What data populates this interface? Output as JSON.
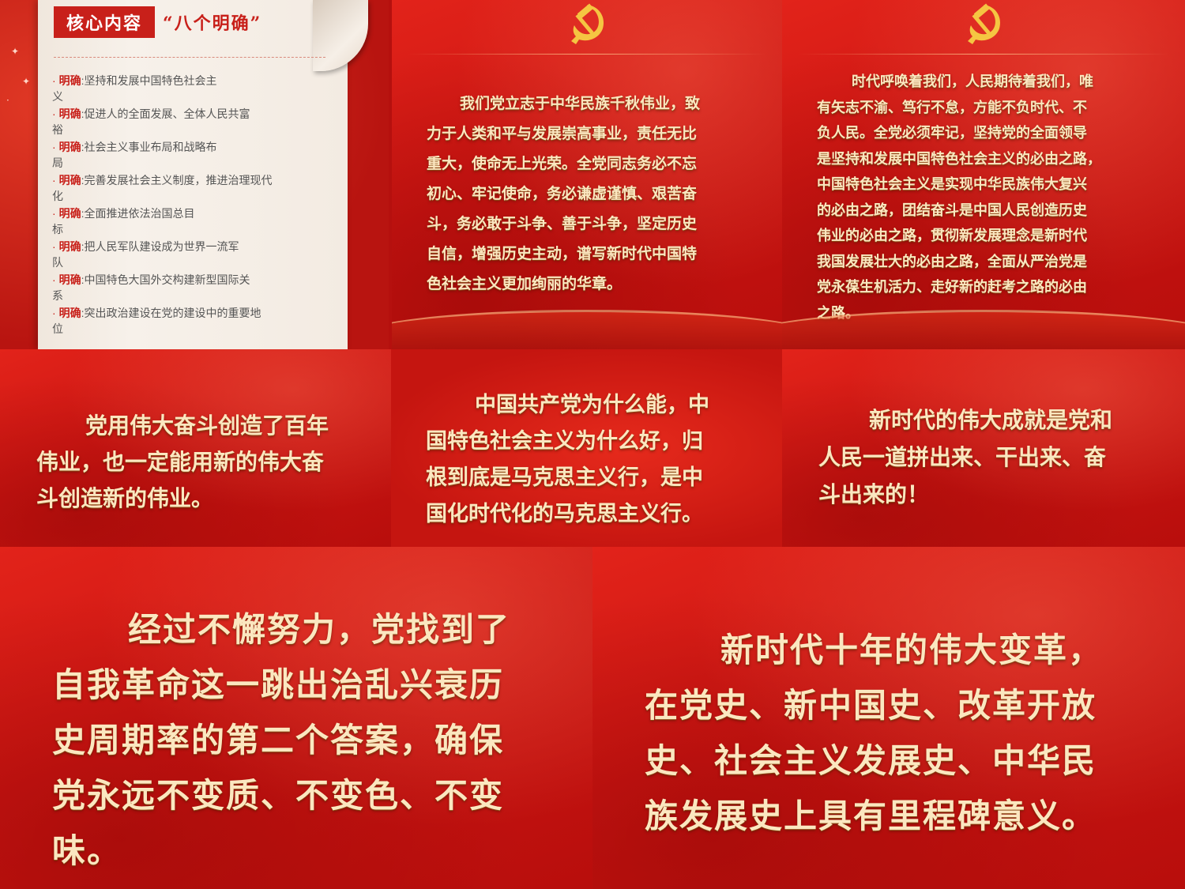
{
  "scroll_panel": {
    "title": "核心内容",
    "subtitle": "“八个明确”",
    "items": [
      {
        "key": "明确",
        "text": ":坚持和发展中国特色社会主",
        "tail": "义"
      },
      {
        "key": "明确",
        "text": ":促进人的全面发展、全体人民共富",
        "tail": "裕"
      },
      {
        "key": "明确",
        "text": ":社会主义事业布局和战略布",
        "tail": "局"
      },
      {
        "key": "明确",
        "text": ":完善发展社会主义制度，推进治理现代",
        "tail": "化"
      },
      {
        "key": "明确",
        "text": ":全面推进依法治国总目",
        "tail": "标"
      },
      {
        "key": "明确",
        "text": ":把人民军队建设成为世界一流军",
        "tail": "队"
      },
      {
        "key": "明确",
        "text": ":中国特色大国外交构建新型国际关",
        "tail": "系"
      },
      {
        "key": "明确",
        "text": ":突出政治建设在党的建设中的重要地",
        "tail": "位"
      }
    ]
  },
  "panel_2": {
    "lines": [
      "我们党立志于中华民族千秋伟业，致",
      "力于人类和平与发展崇高事业，责任无比",
      "重大，使命无上光荣。全党同志务必不忘",
      "初心、牢记使命，务必谦虚谨慎、艰苦奋",
      "斗，务必敢于斗争、善于斗争，坚定历史",
      "自信，增强历史主动，谱写新时代中国特",
      "色社会主义更加绚丽的华章。"
    ]
  },
  "panel_3": {
    "lines": [
      "时代呼唤着我们，人民期待着我们，唯",
      "有矢志不渝、笃行不怠，方能不负时代、不",
      "负人民。全党必须牢记，坚持党的全面领导",
      "是坚持和发展中国特色社会主义的必由之路，",
      "中国特色社会主义是实现中华民族伟大复兴",
      "的必由之路，团结奋斗是中国人民创造历史",
      "伟业的必由之路，贯彻新发展理念是新时代",
      "我国发展壮大的必由之路，全面从严治党是",
      "党永葆生机活力、走好新的赶考之路的必由",
      "之路。"
    ]
  },
  "panel_4": {
    "lines": [
      "党用伟大奋斗创造了百年",
      "伟业，也一定能用新的伟大奋",
      "斗创造新的伟业。"
    ]
  },
  "panel_5": {
    "lines": [
      "中国共产党为什么能，中",
      "国特色社会主义为什么好，归",
      "根到底是马克思主义行，是中",
      "国化时代化的马克思主义行。"
    ]
  },
  "panel_6": {
    "lines": [
      "新时代的伟大成就是党和",
      "人民一道拼出来、干出来、奋",
      "斗出来的！"
    ]
  },
  "panel_7": {
    "lines": [
      "经过不懈努力，党找到了",
      "自我革命这一跳出治乱兴衰历",
      "史周期率的第二个答案，确保",
      "党永远不变质、不变色、不变",
      "味。"
    ]
  },
  "panel_8": {
    "lines": [
      "新时代十年的伟大变革，",
      "在党史、新中国史、改革开放",
      "史、社会主义发展史、中华民",
      "族发展史上具有里程碑意义。"
    ]
  },
  "icons": {
    "emblem": "hammer-and-sickle-icon",
    "star": "sparkle-icon"
  },
  "colors": {
    "red": "#cc1512",
    "gold_text": "#fbe7c0",
    "title_red": "#c8201a"
  }
}
